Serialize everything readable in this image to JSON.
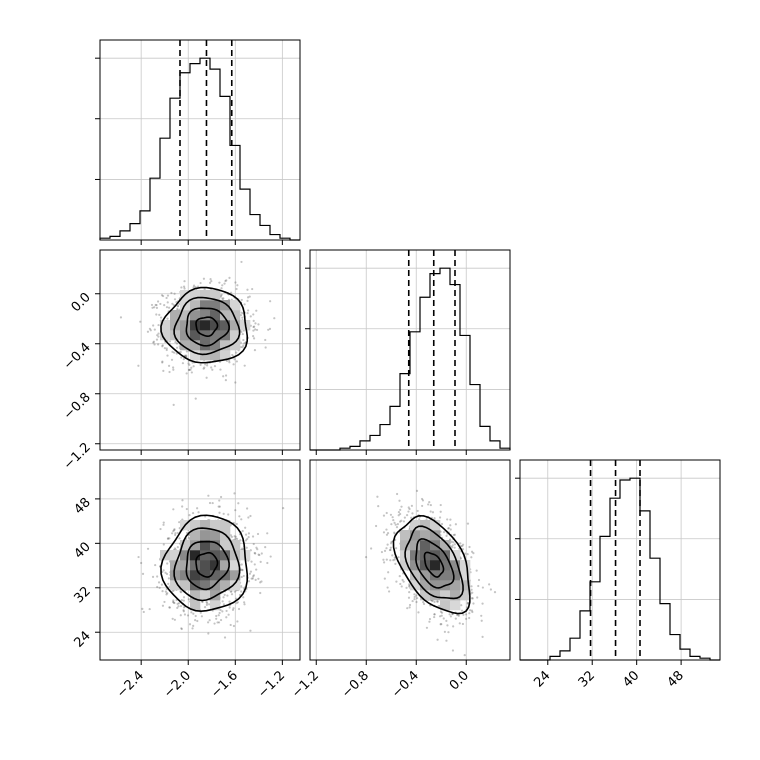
{
  "chart_data": [
    {
      "type": "histogram",
      "panel": "hist-param-1",
      "xlim": [
        -2.75,
        -1.05
      ],
      "edges": [
        -2.75,
        -2.665,
        -2.58,
        -2.495,
        -2.41,
        -2.325,
        -2.24,
        -2.155,
        -2.07,
        -1.985,
        -1.9,
        -1.815,
        -1.73,
        -1.645,
        -1.56,
        -1.475,
        -1.39,
        -1.305,
        -1.22,
        -1.135,
        -1.05
      ],
      "counts": [
        0.01,
        0.02,
        0.05,
        0.09,
        0.16,
        0.34,
        0.56,
        0.78,
        0.92,
        0.97,
        1.0,
        0.94,
        0.79,
        0.52,
        0.28,
        0.14,
        0.08,
        0.03,
        0.01,
        0.0
      ],
      "quantiles": [
        -2.07,
        -1.845,
        -1.63
      ],
      "xticks": [
        -2.4,
        -2.0,
        -1.6,
        -1.2
      ],
      "xtick_labels": [
        "−2.4",
        "−2.0",
        "−1.6",
        "−1.2"
      ],
      "grid": true
    },
    {
      "type": "histogram",
      "panel": "hist-param-2",
      "xlim": [
        -1.25,
        0.35
      ],
      "edges": [
        -1.25,
        -1.17,
        -1.09,
        -1.01,
        -0.93,
        -0.85,
        -0.77,
        -0.69,
        -0.61,
        -0.53,
        -0.45,
        -0.37,
        -0.29,
        -0.21,
        -0.13,
        -0.05,
        0.03,
        0.11,
        0.19,
        0.27,
        0.35
      ],
      "counts": [
        0.0,
        0.0,
        0.0,
        0.01,
        0.02,
        0.05,
        0.08,
        0.14,
        0.24,
        0.42,
        0.65,
        0.84,
        0.97,
        1.0,
        0.91,
        0.63,
        0.36,
        0.13,
        0.05,
        0.01
      ],
      "quantiles": [
        -0.46,
        -0.26,
        -0.09
      ],
      "xticks": [
        -1.2,
        -0.8,
        -0.4,
        0.0
      ],
      "xtick_labels": [
        "−1.2",
        "−0.8",
        "−0.4",
        "0.0"
      ],
      "grid": true
    },
    {
      "type": "histogram",
      "panel": "hist-param-3",
      "xlim": [
        19,
        55
      ],
      "edges": [
        19,
        20.8,
        22.6,
        24.4,
        26.2,
        28,
        29.8,
        31.6,
        33.4,
        35.2,
        37,
        38.8,
        40.6,
        42.4,
        44.2,
        46,
        47.8,
        49.6,
        51.4,
        53.2,
        55
      ],
      "counts": [
        0.0,
        0.0,
        0.0,
        0.02,
        0.05,
        0.12,
        0.27,
        0.43,
        0.68,
        0.89,
        0.99,
        1.0,
        0.82,
        0.56,
        0.31,
        0.14,
        0.06,
        0.02,
        0.01,
        0.0
      ],
      "quantiles": [
        31.7,
        36.2,
        40.6
      ],
      "xticks": [
        24,
        32,
        40,
        48
      ],
      "xtick_labels": [
        "24",
        "32",
        "40",
        "48"
      ],
      "grid": true
    },
    {
      "type": "scatter",
      "panel": "scatter-p1-vs-p2",
      "xlim": [
        -2.75,
        -1.05
      ],
      "ylim": [
        -1.25,
        0.35
      ],
      "center": [
        -1.845,
        -0.26
      ],
      "sd": [
        0.18,
        0.15
      ],
      "rho": 0.0,
      "n_points": 1400,
      "contour_levels_sigma": [
        0.5,
        1.0,
        1.5,
        2.0
      ],
      "yticks": [
        -1.2,
        -0.8,
        -0.4,
        0.0
      ],
      "ytick_labels": [
        "−1.2",
        "−0.8",
        "−0.4",
        "0.0"
      ],
      "grid": true
    },
    {
      "type": "scatter",
      "panel": "scatter-p1-vs-p3",
      "xlim": [
        -2.75,
        -1.05
      ],
      "ylim": [
        19,
        55
      ],
      "center": [
        -1.845,
        36.2
      ],
      "sd": [
        0.18,
        4.3
      ],
      "rho": 0.05,
      "n_points": 1400,
      "contour_levels_sigma": [
        0.5,
        1.0,
        1.5,
        2.0
      ],
      "xticks": [
        -2.4,
        -2.0,
        -1.6,
        -1.2
      ],
      "xtick_labels": [
        "−2.4",
        "−2.0",
        "−1.6",
        "−1.2"
      ],
      "yticks": [
        24,
        32,
        40,
        48
      ],
      "ytick_labels": [
        "24",
        "32",
        "40",
        "48"
      ],
      "grid": true
    },
    {
      "type": "scatter",
      "panel": "scatter-p2-vs-p3",
      "xlim": [
        -1.25,
        0.35
      ],
      "ylim": [
        19,
        55
      ],
      "center": [
        -0.26,
        36.2
      ],
      "sd": [
        0.15,
        4.3
      ],
      "rho": -0.45,
      "n_points": 1400,
      "contour_levels_sigma": [
        0.5,
        1.0,
        1.5,
        2.0
      ],
      "xticks": [
        -1.2,
        -0.8,
        -0.4,
        0.0
      ],
      "xtick_labels": [
        "−1.2",
        "−0.8",
        "−0.4",
        "0.0"
      ],
      "grid": true
    }
  ]
}
